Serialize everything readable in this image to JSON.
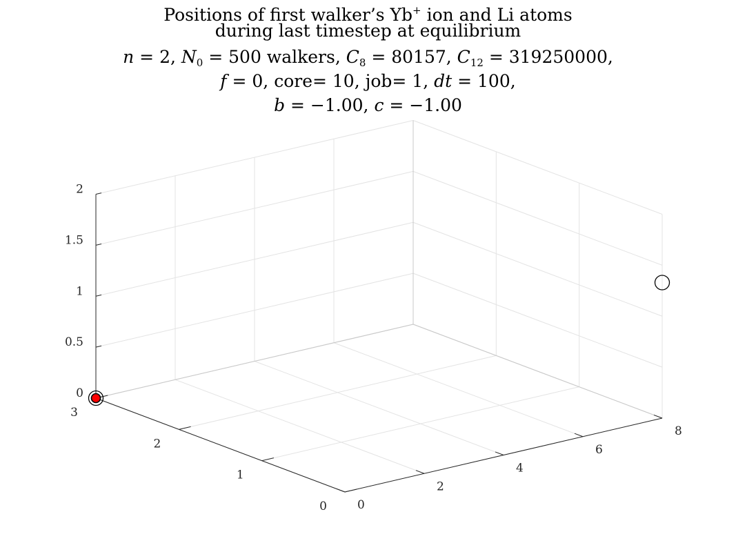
{
  "chart_data": {
    "type": "scatter3d",
    "title_lines": [
      {
        "parts": [
          {
            "t": "Positions of first walker’s Yb"
          },
          {
            "t": "+",
            "cls": "sup"
          },
          {
            "t": " ion and Li atoms"
          }
        ]
      },
      {
        "parts": [
          {
            "t": "during last timestep at equilibrium"
          }
        ]
      },
      {
        "parts": [
          {
            "t": "n",
            "cls": "it"
          },
          {
            "t": " = 2, "
          },
          {
            "t": "N",
            "cls": "it"
          },
          {
            "t": "0",
            "cls": "sub"
          },
          {
            "t": " = 500 walkers, "
          },
          {
            "t": "C",
            "cls": "it"
          },
          {
            "t": "8",
            "cls": "sub"
          },
          {
            "t": " = 80157, "
          },
          {
            "t": "C",
            "cls": "it"
          },
          {
            "t": "12",
            "cls": "sub"
          },
          {
            "t": " = 319250000,"
          }
        ]
      },
      {
        "parts": [
          {
            "t": "f",
            "cls": "it"
          },
          {
            "t": " = 0, core= 10, job= 1, "
          },
          {
            "t": "dt",
            "cls": "it"
          },
          {
            "t": " = 100,"
          }
        ]
      },
      {
        "parts": [
          {
            "t": "b",
            "cls": "it"
          },
          {
            "t": " = −1.00, "
          },
          {
            "t": "c",
            "cls": "it"
          },
          {
            "t": " = −1.00"
          }
        ]
      }
    ],
    "xlim": [
      0,
      8
    ],
    "ylim": [
      0,
      3
    ],
    "zlim": [
      0,
      2
    ],
    "xticks": [
      0,
      2,
      4,
      6,
      8
    ],
    "yticks": [
      0,
      1,
      2,
      3
    ],
    "zticks": [
      0,
      0.5,
      1,
      1.5,
      2
    ],
    "xtick_labels": [
      "0",
      "2",
      "4",
      "6",
      "8"
    ],
    "ytick_labels": [
      "0",
      "1",
      "2",
      "3"
    ],
    "ztick_labels": [
      "0",
      "0.5",
      "1",
      "1.5",
      "2"
    ],
    "grid": true,
    "series": [
      {
        "marker": "open-circle",
        "color": "#000000",
        "points": [
          [
            0,
            3,
            0
          ],
          [
            8,
            0,
            1.33
          ]
        ]
      },
      {
        "marker": "filled-circle",
        "color": "#ff0000",
        "points": [
          [
            0,
            3,
            0
          ]
        ]
      }
    ]
  }
}
